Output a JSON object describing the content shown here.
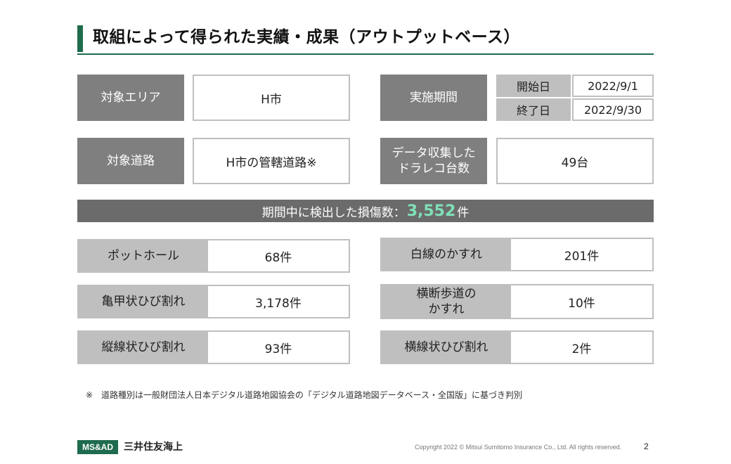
{
  "title": "取組によって得られた実績・成果（アウトプットベース）",
  "info": {
    "area_label": "対象エリア",
    "area_value": "H市",
    "road_label": "対象道路",
    "road_value": "H市の管轄道路※",
    "period_label": "実施期間",
    "start_label": "開始日",
    "start_value": "2022/9/1",
    "end_label": "終了日",
    "end_value": "2022/9/30",
    "recorder_label_line1": "データ収集した",
    "recorder_label_line2": "ドラレコ台数",
    "recorder_value": "49台"
  },
  "summary": {
    "label": "期間中に検出した損傷数：",
    "count": "3,552",
    "unit": "件"
  },
  "damages": {
    "left": [
      {
        "label": "ポットホール",
        "value": "68件"
      },
      {
        "label": "亀甲状ひび割れ",
        "value": "3,178件"
      },
      {
        "label": "縦線状ひび割れ",
        "value": "93件"
      }
    ],
    "right": [
      {
        "label": "白線のかすれ",
        "value": "201件"
      },
      {
        "label_line1": "横断歩道の",
        "label_line2": "かすれ",
        "value": "10件"
      },
      {
        "label": "横線状ひび割れ",
        "value": "2件"
      }
    ]
  },
  "note": "※　道路種別は一般財団法人日本デジタル道路地図協会の「デジタル道路地図データベース・全国版」に基づき判別",
  "footer": {
    "logo": "MS&AD",
    "company": "三井住友海上",
    "copyright": "Copyright 2022 © Mitsui Sumitomo Insurance Co., Ltd. All rights reserved.",
    "page": "2"
  },
  "colors": {
    "accent_green": "#1f6b4d",
    "highlight_number": "#7fe0b8",
    "label_dark": "#7f7f7f",
    "label_light": "#bfbfbf"
  }
}
